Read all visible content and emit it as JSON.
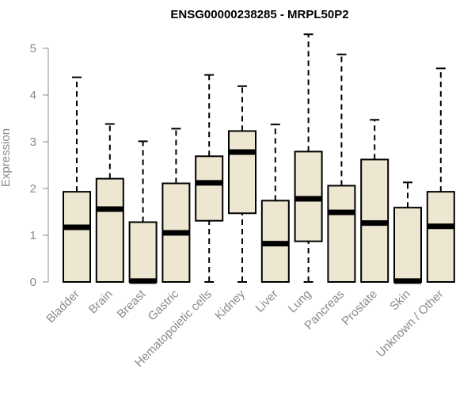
{
  "chart_data": {
    "type": "boxplot",
    "title": "ENSG00000238285 - MRPL50P2",
    "xlabel": "",
    "ylabel": "Expression",
    "ylim": [
      0,
      5.2
    ],
    "yticks": [
      0,
      1,
      2,
      3,
      4,
      5
    ],
    "box_color": "#ede6d1",
    "categories": [
      "Bladder",
      "Brain",
      "Breast",
      "Gastric",
      "Hematopoietic cells",
      "Kidney",
      "Liver",
      "Lung",
      "Pancreas",
      "Prostate",
      "Skin",
      "Unknown / Other"
    ],
    "series": [
      {
        "stats": [
          {
            "min": 0,
            "q1": 0,
            "median": 1.17,
            "q3": 1.93,
            "max": 4.38
          },
          {
            "min": 0,
            "q1": 0,
            "median": 1.56,
            "q3": 2.21,
            "max": 3.38
          },
          {
            "min": 0,
            "q1": 0,
            "median": 0.02,
            "q3": 1.28,
            "max": 3.01
          },
          {
            "min": 0,
            "q1": 0,
            "median": 1.05,
            "q3": 2.11,
            "max": 3.28
          },
          {
            "min": 0,
            "q1": 1.31,
            "median": 2.12,
            "q3": 2.69,
            "max": 4.43
          },
          {
            "min": 0,
            "q1": 1.47,
            "median": 2.78,
            "q3": 3.23,
            "max": 4.19
          },
          {
            "min": 0,
            "q1": 0,
            "median": 0.82,
            "q3": 1.74,
            "max": 3.37
          },
          {
            "min": 0,
            "q1": 0.87,
            "median": 1.78,
            "q3": 2.79,
            "max": 5.3
          },
          {
            "min": 0,
            "q1": 0,
            "median": 1.49,
            "q3": 2.06,
            "max": 4.87
          },
          {
            "min": 0,
            "q1": 0,
            "median": 1.26,
            "q3": 2.62,
            "max": 3.47
          },
          {
            "min": 0,
            "q1": 0,
            "median": 0.02,
            "q3": 1.59,
            "max": 2.13
          },
          {
            "min": 0,
            "q1": 0,
            "median": 1.19,
            "q3": 1.93,
            "max": 4.57
          }
        ]
      }
    ]
  }
}
